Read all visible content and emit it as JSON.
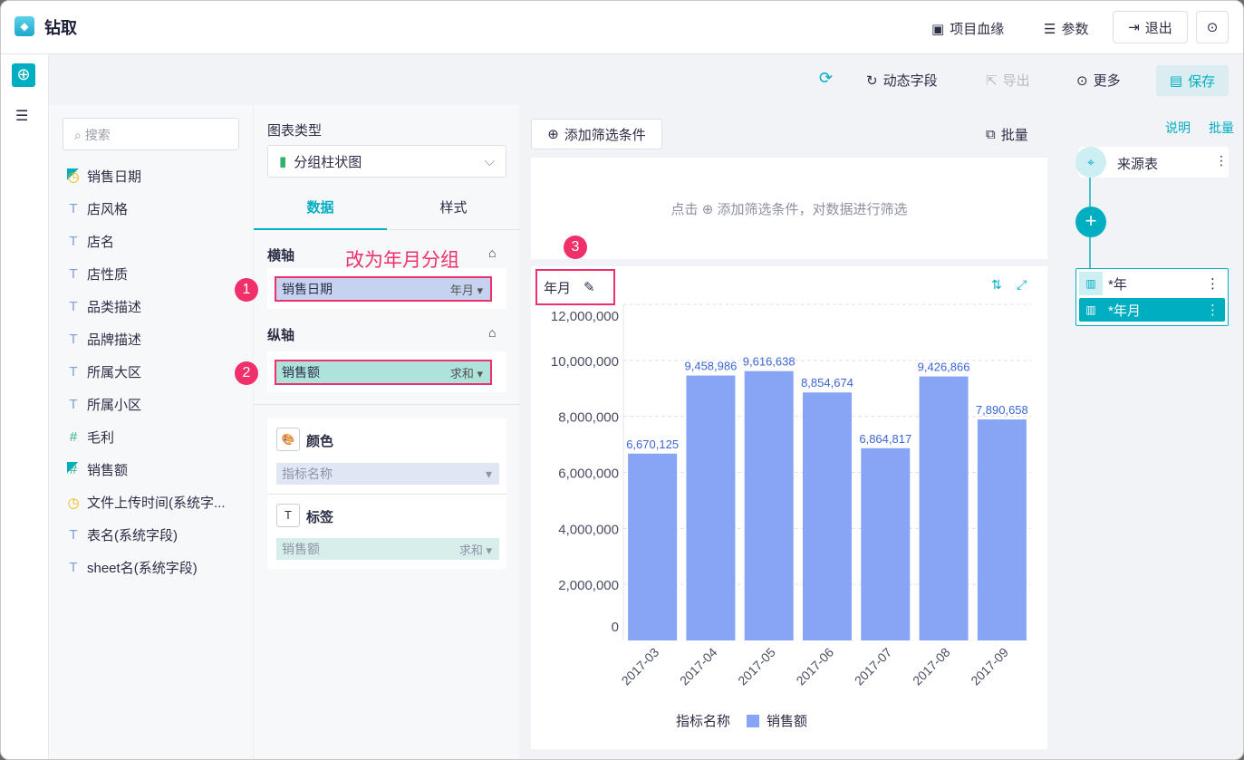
{
  "header": {
    "title": "钻取",
    "lineage": "项目血缘",
    "params": "参数",
    "exit": "退出"
  },
  "toolbar": {
    "dynamic_field": "动态字段",
    "export": "导出",
    "more": "更多",
    "save": "保存"
  },
  "fields": {
    "search_placeholder": "搜索",
    "items": [
      {
        "label": "销售日期",
        "type": "date",
        "checked": true
      },
      {
        "label": "店风格",
        "type": "text"
      },
      {
        "label": "店名",
        "type": "text"
      },
      {
        "label": "店性质",
        "type": "text"
      },
      {
        "label": "品类描述",
        "type": "text"
      },
      {
        "label": "品牌描述",
        "type": "text"
      },
      {
        "label": "所属大区",
        "type": "text"
      },
      {
        "label": "所属小区",
        "type": "text"
      },
      {
        "label": "毛利",
        "type": "number"
      },
      {
        "label": "销售额",
        "type": "number",
        "checked": true
      },
      {
        "label": "文件上传时间(系统字...",
        "type": "date"
      },
      {
        "label": "表名(系统字段)",
        "type": "text"
      },
      {
        "label": "sheet名(系统字段)",
        "type": "text"
      }
    ]
  },
  "config": {
    "chart_type_label": "图表类型",
    "chart_type": "分组柱状图",
    "tabs": [
      "数据",
      "样式"
    ],
    "x_axis_label": "横轴",
    "x_field": "销售日期",
    "x_agg": "年月",
    "annotation": "改为年月分组",
    "y_axis_label": "纵轴",
    "y_field": "销售额",
    "y_agg": "求和",
    "color_label": "颜色",
    "color_field": "指标名称",
    "tag_label": "标签",
    "tag_field": "销售额",
    "tag_agg": "求和",
    "badges": [
      "1",
      "2",
      "3"
    ]
  },
  "filter": {
    "add_label": "添加筛选条件",
    "batch": "批量",
    "hint_pre": "点击",
    "hint_post": "添加筛选条件，对数据进行筛选"
  },
  "chart_header": {
    "dimension": "年月"
  },
  "right": {
    "explain": "说明",
    "batch": "批量",
    "source": "来源表",
    "nodes": [
      "*年",
      "*年月"
    ]
  },
  "colors": {
    "accent": "#00aec2",
    "bar": "#88a4f5",
    "highlight": "#f0306a"
  },
  "chart_data": {
    "type": "bar",
    "categories": [
      "2017-03",
      "2017-04",
      "2017-05",
      "2017-06",
      "2017-07",
      "2017-08",
      "2017-09"
    ],
    "series": [
      {
        "name": "销售额",
        "values": [
          6670125,
          9458986,
          9616638,
          8854674,
          6864817,
          9426866,
          7890658
        ]
      }
    ],
    "value_labels": [
      "6,670,125",
      "9,458,986",
      "9,616,638",
      "8,854,674",
      "6,864,817",
      "9,426,866",
      "7,890,658"
    ],
    "ylim": [
      0,
      12000000
    ],
    "yticks": [
      "0",
      "2,000,000",
      "4,000,000",
      "6,000,000",
      "8,000,000",
      "10,000,000",
      "12,000,000"
    ],
    "legend_title": "指标名称",
    "legend_position": "bottom",
    "grid": true
  }
}
